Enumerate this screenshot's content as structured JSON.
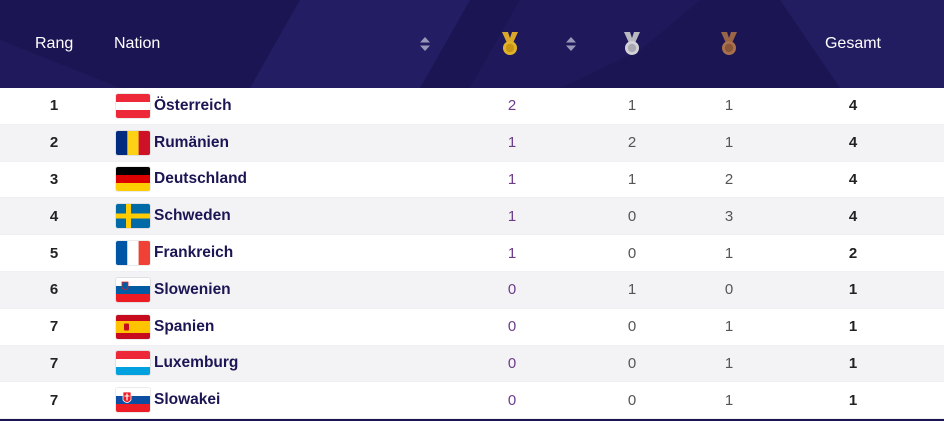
{
  "header": {
    "rank_label": "Rang",
    "nation_label": "Nation",
    "total_label": "Gesamt",
    "gold_icon": "gold-medal-icon",
    "silver_icon": "silver-medal-icon",
    "bronze_icon": "bronze-medal-icon",
    "sort_icon": "sort-icon"
  },
  "colors": {
    "header_bg": "#1b1653",
    "gold": "#e0b12a",
    "silver": "#c8c8cc",
    "bronze": "#a8704d",
    "nation_text": "#1b1653"
  },
  "rows": [
    {
      "rank": "1",
      "nation": "Österreich",
      "flag": "austria-flag-icon",
      "gold": "2",
      "silver": "1",
      "bronze": "1",
      "total": "4"
    },
    {
      "rank": "2",
      "nation": "Rumänien",
      "flag": "romania-flag-icon",
      "gold": "1",
      "silver": "2",
      "bronze": "1",
      "total": "4"
    },
    {
      "rank": "3",
      "nation": "Deutschland",
      "flag": "germany-flag-icon",
      "gold": "1",
      "silver": "1",
      "bronze": "2",
      "total": "4"
    },
    {
      "rank": "4",
      "nation": "Schweden",
      "flag": "sweden-flag-icon",
      "gold": "1",
      "silver": "0",
      "bronze": "3",
      "total": "4"
    },
    {
      "rank": "5",
      "nation": "Frankreich",
      "flag": "france-flag-icon",
      "gold": "1",
      "silver": "0",
      "bronze": "1",
      "total": "2"
    },
    {
      "rank": "6",
      "nation": "Slowenien",
      "flag": "slovenia-flag-icon",
      "gold": "0",
      "silver": "1",
      "bronze": "0",
      "total": "1"
    },
    {
      "rank": "7",
      "nation": "Spanien",
      "flag": "spain-flag-icon",
      "gold": "0",
      "silver": "0",
      "bronze": "1",
      "total": "1"
    },
    {
      "rank": "7",
      "nation": "Luxemburg",
      "flag": "luxembourg-flag-icon",
      "gold": "0",
      "silver": "0",
      "bronze": "1",
      "total": "1"
    },
    {
      "rank": "7",
      "nation": "Slowakei",
      "flag": "slovakia-flag-icon",
      "gold": "0",
      "silver": "0",
      "bronze": "1",
      "total": "1"
    }
  ]
}
